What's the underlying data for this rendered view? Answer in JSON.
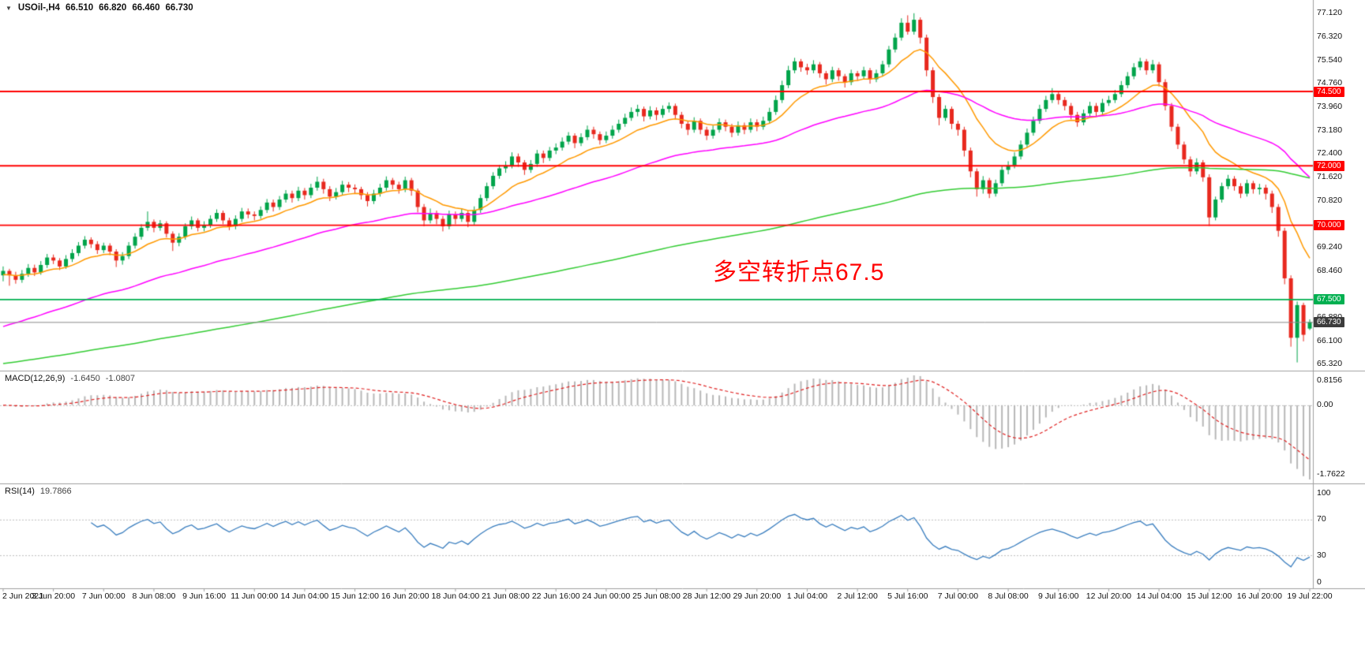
{
  "chart_header": {
    "icon": "▼",
    "symbol": "USOil-,H4",
    "open": "66.510",
    "high": "66.820",
    "low": "66.460",
    "close": "66.730"
  },
  "annotation": {
    "text": "多空转折点67.5",
    "color": "#ff0000"
  },
  "macd": {
    "name": "MACD(12,26,9)",
    "main_value": "-1.6450",
    "signal_value": "-1.0807",
    "ticks": [
      "0.8156",
      "0.00",
      "-1.7622"
    ],
    "hist_color": "#b8b8b8",
    "signal_color": "#e02020"
  },
  "rsi": {
    "name": "RSI(14)",
    "value": "19.7866",
    "ticks": [
      "100",
      "70",
      "30",
      "0"
    ],
    "levels": [
      70,
      30
    ],
    "line_color": "#3a7ebf"
  },
  "chart_data": {
    "type": "candlestick",
    "title": "USOil-,H4",
    "ylim": [
      65.2,
      77.3
    ],
    "up_color": "#00a44a",
    "down_color": "#e8281e",
    "label_every": 8,
    "y_ticks": [
      "77.120",
      "76.320",
      "75.540",
      "74.760",
      "73.960",
      "73.180",
      "72.400",
      "71.620",
      "70.820",
      "69.240",
      "68.460",
      "66.880",
      "66.100",
      "65.320"
    ],
    "x_labels": [
      "2 Jun 2021",
      "3 Jun 20:00",
      "7 Jun 00:00",
      "8 Jun 08:00",
      "9 Jun 16:00",
      "11 Jun 00:00",
      "14 Jun 04:00",
      "15 Jun 12:00",
      "16 Jun 20:00",
      "18 Jun 04:00",
      "21 Jun 08:00",
      "22 Jun 16:00",
      "24 Jun 00:00",
      "25 Jun 08:00",
      "28 Jun 12:00",
      "29 Jun 20:00",
      "1 Jul 04:00",
      "2 Jul 12:00",
      "5 Jul 16:00",
      "7 Jul 00:00",
      "8 Jul 08:00",
      "9 Jul 16:00",
      "12 Jul 20:00",
      "14 Jul 04:00",
      "15 Jul 12:00",
      "16 Jul 20:00",
      "19 Jul 22:00"
    ],
    "levels": [
      {
        "value": 74.5,
        "label": "74.500",
        "color": "#ff0000"
      },
      {
        "value": 72.0,
        "label": "72.000",
        "color": "#ff0000"
      },
      {
        "value": 70.0,
        "label": "70.000",
        "color": "#ff0000"
      },
      {
        "value": 67.5,
        "label": "67.500",
        "color": "#00b050"
      },
      {
        "value": 66.73,
        "label": "66.730",
        "color": "#3c3c3c",
        "current": true
      }
    ],
    "moving_averages": [
      {
        "name": "ma-fast",
        "period": 13,
        "seed": 68.3,
        "color": "#ff9900"
      },
      {
        "name": "ma-medium",
        "period": 50,
        "seed": 66.5,
        "color": "#ff00ff"
      },
      {
        "name": "ma-slow",
        "period": 200,
        "seed": 65.3,
        "color": "#33cc33"
      }
    ],
    "candles": [
      [
        68.3,
        68.6,
        68.1,
        68.45
      ],
      [
        68.45,
        68.52,
        67.95,
        68.3
      ],
      [
        68.3,
        68.42,
        68.02,
        68.15
      ],
      [
        68.15,
        68.48,
        68.05,
        68.35
      ],
      [
        68.35,
        68.68,
        68.25,
        68.55
      ],
      [
        68.55,
        68.66,
        68.28,
        68.4
      ],
      [
        68.4,
        68.78,
        68.32,
        68.65
      ],
      [
        68.65,
        69.02,
        68.55,
        68.9
      ],
      [
        68.9,
        69.0,
        68.68,
        68.8
      ],
      [
        68.8,
        68.88,
        68.48,
        68.6
      ],
      [
        68.6,
        68.98,
        68.52,
        68.85
      ],
      [
        68.85,
        69.18,
        68.75,
        69.05
      ],
      [
        69.05,
        69.42,
        68.95,
        69.3
      ],
      [
        69.3,
        69.62,
        69.2,
        69.5
      ],
      [
        69.5,
        69.58,
        69.22,
        69.35
      ],
      [
        69.35,
        69.45,
        69.02,
        69.15
      ],
      [
        69.15,
        69.4,
        69.05,
        69.3
      ],
      [
        69.3,
        69.38,
        68.98,
        69.1
      ],
      [
        69.1,
        69.18,
        68.58,
        68.8
      ],
      [
        68.8,
        69.08,
        68.66,
        68.95
      ],
      [
        68.95,
        69.42,
        68.85,
        69.3
      ],
      [
        69.3,
        69.72,
        69.2,
        69.6
      ],
      [
        69.6,
        70.02,
        69.5,
        69.9
      ],
      [
        69.9,
        70.45,
        69.8,
        70.1
      ],
      [
        70.1,
        70.18,
        69.75,
        69.9
      ],
      [
        69.9,
        70.16,
        69.8,
        70.05
      ],
      [
        70.05,
        70.12,
        69.58,
        69.7
      ],
      [
        69.7,
        69.78,
        69.12,
        69.4
      ],
      [
        69.4,
        69.72,
        69.28,
        69.6
      ],
      [
        69.6,
        70.05,
        69.5,
        69.95
      ],
      [
        69.95,
        70.28,
        69.85,
        70.15
      ],
      [
        70.15,
        70.22,
        69.78,
        69.9
      ],
      [
        69.9,
        70.12,
        69.78,
        70.0
      ],
      [
        70.0,
        70.32,
        69.9,
        70.2
      ],
      [
        70.2,
        70.52,
        70.1,
        70.4
      ],
      [
        70.4,
        70.48,
        70.02,
        70.15
      ],
      [
        70.15,
        70.24,
        69.82,
        69.95
      ],
      [
        69.95,
        70.32,
        69.85,
        70.2
      ],
      [
        70.2,
        70.57,
        70.1,
        70.45
      ],
      [
        70.45,
        70.55,
        70.22,
        70.35
      ],
      [
        70.35,
        70.45,
        70.15,
        70.3
      ],
      [
        70.3,
        70.62,
        70.2,
        70.5
      ],
      [
        70.5,
        70.87,
        70.4,
        70.75
      ],
      [
        70.75,
        70.85,
        70.45,
        70.6
      ],
      [
        70.6,
        70.97,
        70.5,
        70.85
      ],
      [
        70.85,
        71.17,
        70.75,
        71.05
      ],
      [
        71.05,
        71.15,
        70.75,
        70.9
      ],
      [
        70.9,
        71.28,
        70.8,
        71.15
      ],
      [
        71.15,
        71.24,
        70.85,
        71.0
      ],
      [
        71.0,
        71.38,
        70.9,
        71.25
      ],
      [
        71.25,
        71.62,
        71.15,
        71.45
      ],
      [
        71.45,
        71.55,
        71.05,
        71.2
      ],
      [
        71.2,
        71.3,
        70.8,
        70.95
      ],
      [
        70.95,
        71.24,
        70.85,
        71.1
      ],
      [
        71.1,
        71.48,
        71.0,
        71.35
      ],
      [
        71.35,
        71.44,
        71.1,
        71.25
      ],
      [
        71.25,
        71.36,
        71.06,
        71.2
      ],
      [
        71.2,
        71.28,
        70.85,
        71.0
      ],
      [
        71.0,
        71.1,
        70.62,
        70.8
      ],
      [
        70.8,
        71.18,
        70.7,
        71.05
      ],
      [
        71.05,
        71.38,
        70.95,
        71.25
      ],
      [
        71.25,
        71.63,
        71.15,
        71.5
      ],
      [
        71.5,
        71.58,
        71.2,
        71.35
      ],
      [
        71.35,
        71.45,
        71.05,
        71.2
      ],
      [
        71.2,
        71.62,
        71.1,
        71.5
      ],
      [
        71.5,
        71.58,
        70.98,
        71.15
      ],
      [
        71.15,
        71.22,
        70.42,
        70.6
      ],
      [
        70.6,
        70.7,
        69.95,
        70.15
      ],
      [
        70.15,
        70.55,
        70.05,
        70.4
      ],
      [
        70.4,
        70.48,
        70.02,
        70.2
      ],
      [
        70.2,
        70.3,
        69.78,
        69.95
      ],
      [
        69.95,
        70.48,
        69.85,
        70.35
      ],
      [
        70.35,
        70.45,
        70.02,
        70.2
      ],
      [
        70.2,
        70.55,
        70.1,
        70.4
      ],
      [
        70.4,
        70.48,
        69.92,
        70.1
      ],
      [
        70.1,
        70.62,
        70.0,
        70.5
      ],
      [
        70.5,
        71.02,
        70.4,
        70.9
      ],
      [
        70.9,
        71.42,
        70.8,
        71.3
      ],
      [
        71.3,
        71.77,
        71.2,
        71.65
      ],
      [
        71.65,
        72.02,
        71.55,
        71.9
      ],
      [
        71.9,
        72.14,
        71.75,
        72.0
      ],
      [
        72.0,
        72.44,
        71.9,
        72.3
      ],
      [
        72.3,
        72.4,
        71.95,
        72.1
      ],
      [
        72.1,
        72.18,
        71.68,
        71.85
      ],
      [
        71.85,
        72.18,
        71.75,
        72.05
      ],
      [
        72.05,
        72.52,
        71.95,
        72.4
      ],
      [
        72.4,
        72.5,
        72.08,
        72.25
      ],
      [
        72.25,
        72.62,
        72.15,
        72.5
      ],
      [
        72.5,
        72.74,
        72.38,
        72.6
      ],
      [
        72.6,
        72.94,
        72.5,
        72.8
      ],
      [
        72.8,
        73.12,
        72.7,
        73.0
      ],
      [
        73.0,
        73.08,
        72.58,
        72.75
      ],
      [
        72.75,
        73.08,
        72.65,
        72.95
      ],
      [
        72.95,
        73.34,
        72.85,
        73.2
      ],
      [
        73.2,
        73.3,
        72.9,
        73.05
      ],
      [
        73.05,
        73.14,
        72.7,
        72.85
      ],
      [
        72.85,
        73.14,
        72.75,
        73.0
      ],
      [
        73.0,
        73.34,
        72.9,
        73.2
      ],
      [
        73.2,
        73.54,
        73.1,
        73.4
      ],
      [
        73.4,
        73.74,
        73.3,
        73.6
      ],
      [
        73.6,
        73.95,
        73.5,
        73.8
      ],
      [
        73.8,
        74.04,
        73.65,
        73.9
      ],
      [
        73.9,
        73.98,
        73.48,
        73.65
      ],
      [
        73.65,
        73.99,
        73.55,
        73.85
      ],
      [
        73.85,
        73.95,
        73.52,
        73.7
      ],
      [
        73.7,
        74.02,
        73.6,
        73.9
      ],
      [
        73.9,
        74.12,
        73.78,
        74.0
      ],
      [
        74.0,
        74.08,
        73.55,
        73.7
      ],
      [
        73.7,
        73.8,
        73.25,
        73.4
      ],
      [
        73.4,
        73.5,
        73.02,
        73.2
      ],
      [
        73.2,
        73.62,
        73.1,
        73.5
      ],
      [
        73.5,
        73.58,
        73.05,
        73.2
      ],
      [
        73.2,
        73.3,
        72.85,
        73.0
      ],
      [
        73.0,
        73.34,
        72.9,
        73.2
      ],
      [
        73.2,
        73.58,
        73.1,
        73.45
      ],
      [
        73.45,
        73.54,
        73.15,
        73.3
      ],
      [
        73.3,
        73.4,
        72.95,
        73.1
      ],
      [
        73.1,
        73.48,
        73.0,
        73.35
      ],
      [
        73.35,
        73.44,
        73.05,
        73.2
      ],
      [
        73.2,
        73.58,
        73.1,
        73.45
      ],
      [
        73.45,
        73.55,
        73.15,
        73.3
      ],
      [
        73.3,
        73.64,
        73.2,
        73.5
      ],
      [
        73.5,
        73.94,
        73.4,
        73.8
      ],
      [
        73.8,
        74.35,
        73.7,
        74.2
      ],
      [
        74.2,
        74.85,
        74.1,
        74.7
      ],
      [
        74.7,
        75.35,
        74.6,
        75.2
      ],
      [
        75.2,
        75.62,
        75.1,
        75.5
      ],
      [
        75.5,
        75.58,
        75.15,
        75.3
      ],
      [
        75.3,
        75.42,
        75.05,
        75.2
      ],
      [
        75.2,
        75.54,
        75.1,
        75.4
      ],
      [
        75.4,
        75.48,
        74.95,
        75.1
      ],
      [
        75.1,
        75.18,
        74.72,
        74.9
      ],
      [
        74.9,
        75.32,
        74.8,
        75.2
      ],
      [
        75.2,
        75.28,
        74.85,
        75.0
      ],
      [
        75.0,
        75.08,
        74.62,
        74.8
      ],
      [
        74.8,
        75.22,
        74.7,
        75.1
      ],
      [
        75.1,
        75.18,
        74.85,
        75.0
      ],
      [
        75.0,
        75.32,
        74.9,
        75.2
      ],
      [
        75.2,
        75.28,
        74.75,
        74.9
      ],
      [
        74.9,
        75.22,
        74.8,
        75.1
      ],
      [
        75.1,
        75.52,
        75.0,
        75.4
      ],
      [
        75.4,
        76.02,
        75.3,
        75.9
      ],
      [
        75.9,
        76.44,
        75.8,
        76.3
      ],
      [
        76.3,
        76.95,
        76.2,
        76.8
      ],
      [
        76.8,
        77.05,
        76.4,
        76.5
      ],
      [
        76.5,
        77.12,
        76.4,
        76.9
      ],
      [
        76.9,
        76.98,
        76.1,
        76.3
      ],
      [
        76.3,
        76.4,
        75.0,
        75.2
      ],
      [
        75.2,
        75.3,
        74.1,
        74.3
      ],
      [
        74.3,
        74.4,
        73.35,
        73.6
      ],
      [
        73.6,
        74.02,
        73.5,
        73.9
      ],
      [
        73.9,
        73.98,
        73.22,
        73.4
      ],
      [
        73.4,
        73.5,
        73.0,
        73.2
      ],
      [
        73.2,
        73.3,
        72.3,
        72.5
      ],
      [
        72.5,
        72.6,
        71.6,
        71.8
      ],
      [
        71.8,
        71.9,
        70.95,
        71.2
      ],
      [
        71.2,
        71.64,
        71.05,
        71.5
      ],
      [
        71.5,
        71.58,
        70.9,
        71.05
      ],
      [
        71.05,
        71.52,
        70.95,
        71.4
      ],
      [
        71.4,
        71.97,
        71.3,
        71.85
      ],
      [
        71.85,
        72.14,
        71.7,
        72.0
      ],
      [
        72.0,
        72.44,
        71.9,
        72.3
      ],
      [
        72.3,
        72.84,
        72.2,
        72.7
      ],
      [
        72.7,
        73.24,
        72.6,
        73.1
      ],
      [
        73.1,
        73.64,
        73.0,
        73.5
      ],
      [
        73.5,
        74.04,
        73.4,
        73.9
      ],
      [
        73.9,
        74.34,
        73.8,
        74.2
      ],
      [
        74.2,
        74.6,
        74.1,
        74.4
      ],
      [
        74.4,
        74.5,
        74.05,
        74.2
      ],
      [
        74.2,
        74.3,
        73.85,
        74.0
      ],
      [
        74.0,
        74.1,
        73.55,
        73.7
      ],
      [
        73.7,
        73.8,
        73.3,
        73.45
      ],
      [
        73.45,
        73.88,
        73.35,
        73.75
      ],
      [
        73.75,
        74.14,
        73.65,
        74.0
      ],
      [
        74.0,
        74.1,
        73.65,
        73.8
      ],
      [
        73.8,
        74.24,
        73.7,
        74.1
      ],
      [
        74.1,
        74.34,
        74.0,
        74.2
      ],
      [
        74.2,
        74.54,
        74.1,
        74.4
      ],
      [
        74.4,
        74.84,
        74.3,
        74.7
      ],
      [
        74.7,
        75.14,
        74.6,
        75.0
      ],
      [
        75.0,
        75.44,
        74.9,
        75.3
      ],
      [
        75.3,
        75.62,
        75.2,
        75.5
      ],
      [
        75.5,
        75.58,
        75.05,
        75.2
      ],
      [
        75.2,
        75.55,
        75.1,
        75.4
      ],
      [
        75.4,
        75.48,
        74.65,
        74.8
      ],
      [
        74.8,
        74.9,
        73.85,
        74.0
      ],
      [
        74.0,
        74.1,
        73.15,
        73.3
      ],
      [
        73.3,
        73.4,
        72.55,
        72.7
      ],
      [
        72.7,
        72.8,
        72.05,
        72.2
      ],
      [
        72.2,
        72.3,
        71.62,
        71.8
      ],
      [
        71.8,
        72.24,
        71.7,
        72.1
      ],
      [
        72.1,
        72.18,
        71.45,
        71.6
      ],
      [
        71.6,
        71.7,
        69.96,
        70.25
      ],
      [
        70.25,
        70.95,
        70.15,
        70.85
      ],
      [
        70.85,
        71.42,
        70.75,
        71.3
      ],
      [
        71.3,
        71.68,
        71.2,
        71.55
      ],
      [
        71.55,
        71.64,
        71.15,
        71.3
      ],
      [
        71.3,
        71.4,
        70.9,
        71.05
      ],
      [
        71.05,
        71.52,
        70.95,
        71.4
      ],
      [
        71.4,
        71.48,
        71.05,
        71.2
      ],
      [
        71.2,
        71.38,
        71.02,
        71.25
      ],
      [
        71.25,
        71.35,
        70.85,
        71.05
      ],
      [
        71.05,
        71.15,
        70.4,
        70.6
      ],
      [
        70.6,
        70.7,
        69.6,
        69.8
      ],
      [
        69.8,
        69.9,
        68.0,
        68.2
      ],
      [
        68.2,
        68.3,
        65.9,
        66.2
      ],
      [
        66.2,
        67.42,
        65.37,
        67.3
      ],
      [
        67.3,
        67.38,
        66.08,
        66.3
      ],
      [
        66.51,
        66.82,
        66.46,
        66.73
      ]
    ]
  }
}
